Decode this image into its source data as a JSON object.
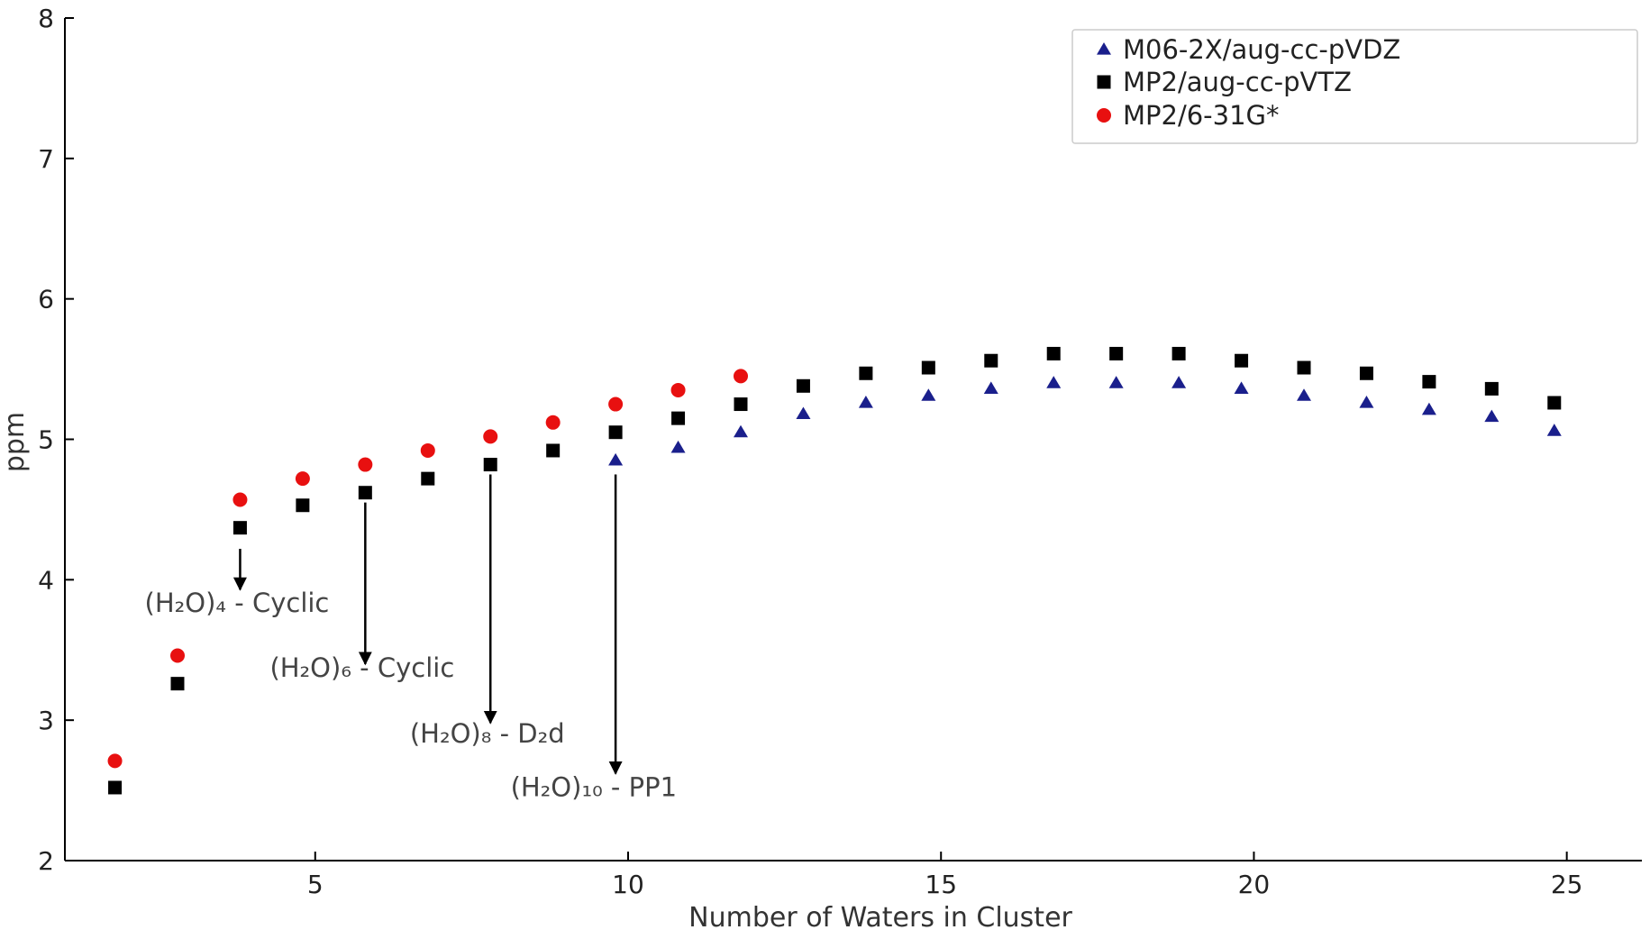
{
  "chart_data": {
    "type": "scatter",
    "title": "",
    "xlabel": "Number of Waters in Cluster",
    "ylabel": "ppm",
    "xlim": [
      1.0,
      26.2
    ],
    "ylim": [
      2,
      8
    ],
    "xticks": [
      5,
      10,
      15,
      20,
      25
    ],
    "yticks": [
      2,
      3,
      4,
      5,
      6,
      7,
      8
    ],
    "grid": false,
    "legend_position": "top-right",
    "series": [
      {
        "name": "M06-2X/aug-cc-pVDZ",
        "marker": "triangle",
        "color": "#1a1f8c",
        "points": [
          [
            9.8,
            4.85
          ],
          [
            10.8,
            4.94
          ],
          [
            11.8,
            5.05
          ],
          [
            12.8,
            5.18
          ],
          [
            13.8,
            5.26
          ],
          [
            14.8,
            5.31
          ],
          [
            15.8,
            5.36
          ],
          [
            16.8,
            5.4
          ],
          [
            17.8,
            5.4
          ],
          [
            18.8,
            5.4
          ],
          [
            19.8,
            5.36
          ],
          [
            20.8,
            5.31
          ],
          [
            21.8,
            5.26
          ],
          [
            22.8,
            5.21
          ],
          [
            23.8,
            5.16
          ],
          [
            24.8,
            5.06
          ]
        ]
      },
      {
        "name": "MP2/aug-cc-pVTZ",
        "marker": "square",
        "color": "#000000",
        "points": [
          [
            1.8,
            2.52
          ],
          [
            2.8,
            3.26
          ],
          [
            3.8,
            4.37
          ],
          [
            4.8,
            4.53
          ],
          [
            5.8,
            4.62
          ],
          [
            6.8,
            4.72
          ],
          [
            7.8,
            4.82
          ],
          [
            8.8,
            4.92
          ],
          [
            9.8,
            5.05
          ],
          [
            10.8,
            5.15
          ],
          [
            11.8,
            5.25
          ],
          [
            12.8,
            5.38
          ],
          [
            13.8,
            5.47
          ],
          [
            14.8,
            5.51
          ],
          [
            15.8,
            5.56
          ],
          [
            16.8,
            5.61
          ],
          [
            17.8,
            5.61
          ],
          [
            18.8,
            5.61
          ],
          [
            19.8,
            5.56
          ],
          [
            20.8,
            5.51
          ],
          [
            21.8,
            5.47
          ],
          [
            22.8,
            5.41
          ],
          [
            23.8,
            5.36
          ],
          [
            24.8,
            5.26
          ]
        ]
      },
      {
        "name": "MP2/6-31G*",
        "marker": "circle",
        "color": "#e81010",
        "points": [
          [
            1.8,
            2.71
          ],
          [
            2.8,
            3.46
          ],
          [
            3.8,
            4.57
          ],
          [
            4.8,
            4.72
          ],
          [
            5.8,
            4.82
          ],
          [
            6.8,
            4.92
          ],
          [
            7.8,
            5.02
          ],
          [
            8.8,
            5.12
          ],
          [
            9.8,
            5.25
          ],
          [
            10.8,
            5.35
          ],
          [
            11.8,
            5.45
          ]
        ]
      }
    ],
    "annotations": [
      {
        "text": "(H₂O)₄ - Cyclic",
        "arrow_x": 3.8,
        "arrow_from_y": 4.22,
        "arrow_to_y": 3.93,
        "text_x": 3.75,
        "text_y": 3.77
      },
      {
        "text": "(H₂O)₆ - Cyclic",
        "arrow_x": 5.8,
        "arrow_from_y": 4.55,
        "arrow_to_y": 3.4,
        "text_x": 5.75,
        "text_y": 3.31
      },
      {
        "text": "(H₂O)₈ - D₂d",
        "arrow_x": 7.8,
        "arrow_from_y": 4.75,
        "arrow_to_y": 2.98,
        "text_x": 7.75,
        "text_y": 2.84
      },
      {
        "text": "(H₂O)₁₀ - PP1",
        "arrow_x": 9.8,
        "arrow_from_y": 4.75,
        "arrow_to_y": 2.62,
        "text_x": 9.45,
        "text_y": 2.46
      }
    ]
  }
}
